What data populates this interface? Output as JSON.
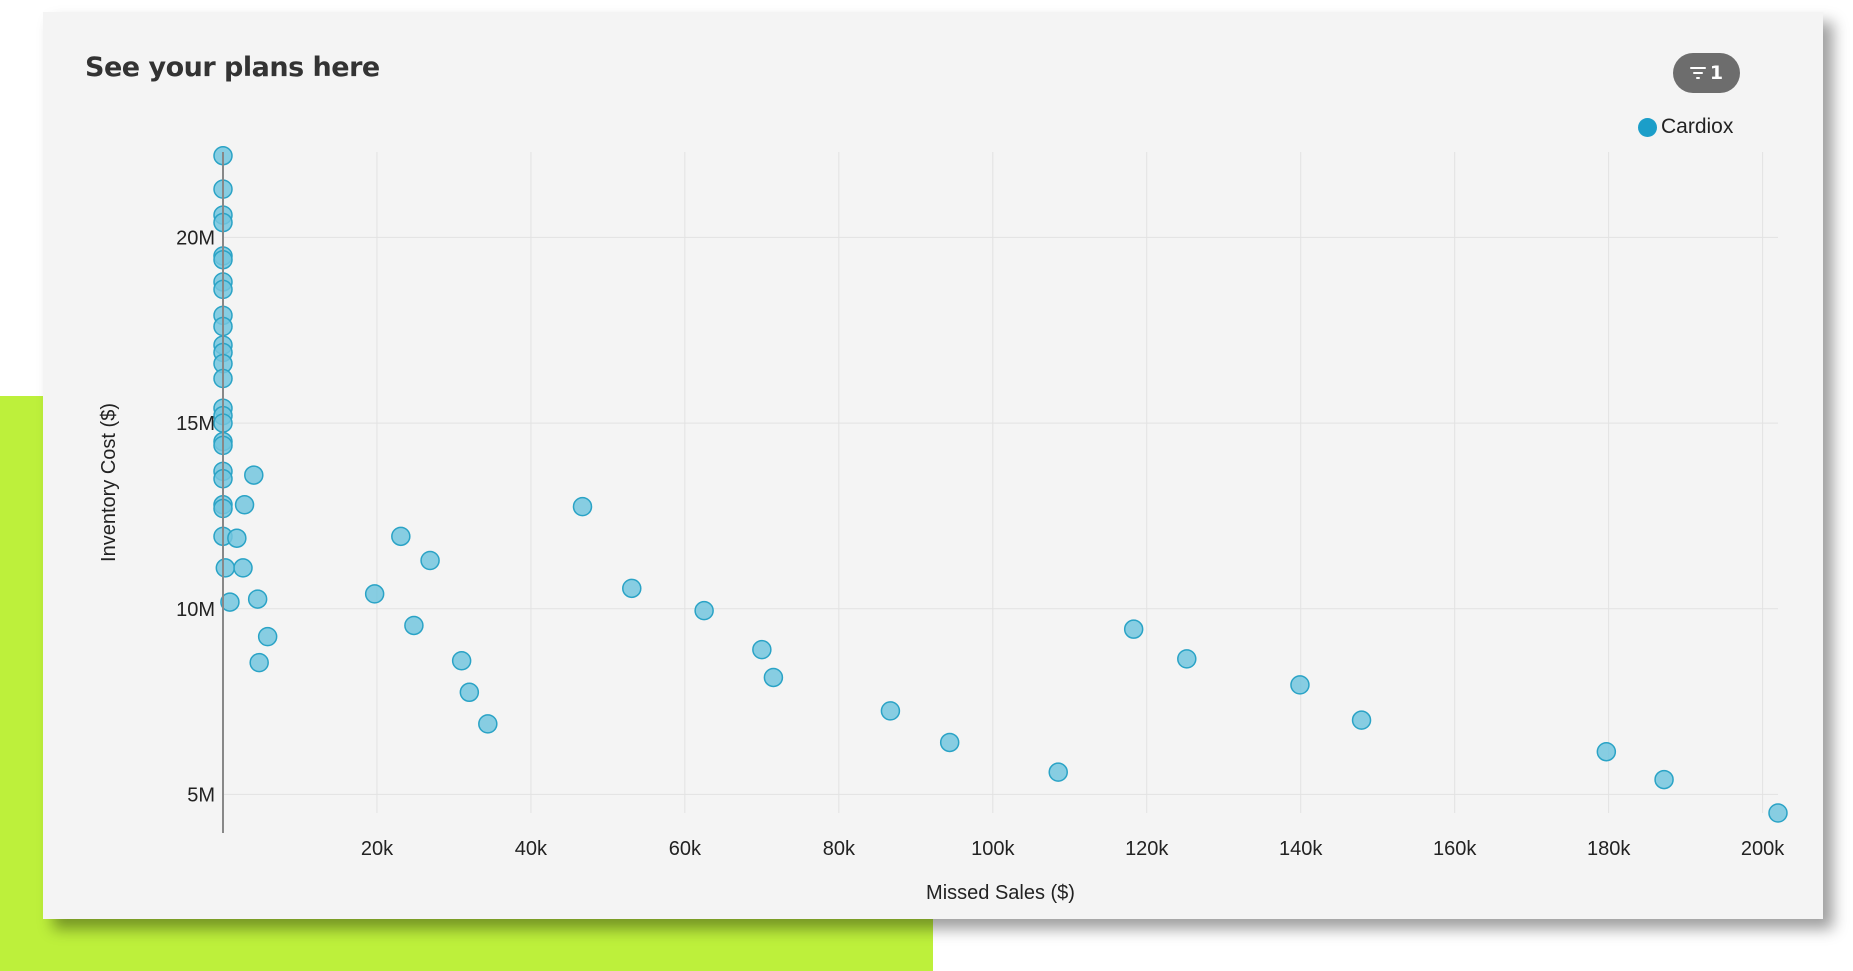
{
  "card": {
    "title": "See your plans here",
    "filter_count": "1",
    "filter_icon": "filter-icon"
  },
  "colors": {
    "accent_block": "#bdf03b",
    "point_fill": "#73c5de",
    "point_stroke": "#2aa3c6",
    "legend": "#1b9ec9"
  },
  "chart_data": {
    "type": "scatter",
    "title": "",
    "xlabel": "Missed Sales ($)",
    "ylabel": "Inventory Cost ($)",
    "xlim": [
      0,
      202000
    ],
    "ylim": [
      4500000,
      22300000
    ],
    "x_ticks": [
      20000,
      40000,
      60000,
      80000,
      100000,
      120000,
      140000,
      160000,
      180000,
      200000
    ],
    "x_tick_labels": [
      "20k",
      "40k",
      "60k",
      "80k",
      "100k",
      "120k",
      "140k",
      "160k",
      "180k",
      "200k"
    ],
    "y_ticks": [
      5000000,
      10000000,
      15000000,
      20000000
    ],
    "y_tick_labels": [
      "5M",
      "10M",
      "15M",
      "20M"
    ],
    "grid": true,
    "legend_position": "top-right",
    "series": [
      {
        "name": "Cardiox",
        "points": [
          [
            0,
            22200000
          ],
          [
            0,
            21300000
          ],
          [
            0,
            20600000
          ],
          [
            0,
            20400000
          ],
          [
            0,
            19500000
          ],
          [
            0,
            19400000
          ],
          [
            0,
            18800000
          ],
          [
            0,
            18600000
          ],
          [
            0,
            17900000
          ],
          [
            0,
            17600000
          ],
          [
            0,
            17100000
          ],
          [
            0,
            16900000
          ],
          [
            0,
            16600000
          ],
          [
            0,
            16200000
          ],
          [
            0,
            15400000
          ],
          [
            0,
            15200000
          ],
          [
            0,
            15000000
          ],
          [
            0,
            14500000
          ],
          [
            0,
            14400000
          ],
          [
            0,
            13700000
          ],
          [
            0,
            13500000
          ],
          [
            0,
            12800000
          ],
          [
            0,
            12700000
          ],
          [
            0,
            11950000
          ],
          [
            300,
            11100000
          ],
          [
            900,
            10180000
          ],
          [
            1800,
            11900000
          ],
          [
            2600,
            11100000
          ],
          [
            2800,
            12800000
          ],
          [
            4000,
            13600000
          ],
          [
            4500,
            10260000
          ],
          [
            4700,
            8550000
          ],
          [
            5800,
            9250000
          ],
          [
            19700,
            10400000
          ],
          [
            23100,
            11950000
          ],
          [
            24800,
            9550000
          ],
          [
            26900,
            11300000
          ],
          [
            31000,
            8600000
          ],
          [
            32000,
            7750000
          ],
          [
            34400,
            6900000
          ],
          [
            46700,
            12750000
          ],
          [
            53100,
            10550000
          ],
          [
            62500,
            9950000
          ],
          [
            70000,
            8900000
          ],
          [
            71500,
            8150000
          ],
          [
            86700,
            7250000
          ],
          [
            94400,
            6400000
          ],
          [
            108500,
            5600000
          ],
          [
            118300,
            9450000
          ],
          [
            125200,
            8650000
          ],
          [
            139900,
            7950000
          ],
          [
            147900,
            7000000
          ],
          [
            179700,
            6150000
          ],
          [
            187200,
            5400000
          ],
          [
            202000,
            4500000
          ]
        ]
      }
    ]
  }
}
